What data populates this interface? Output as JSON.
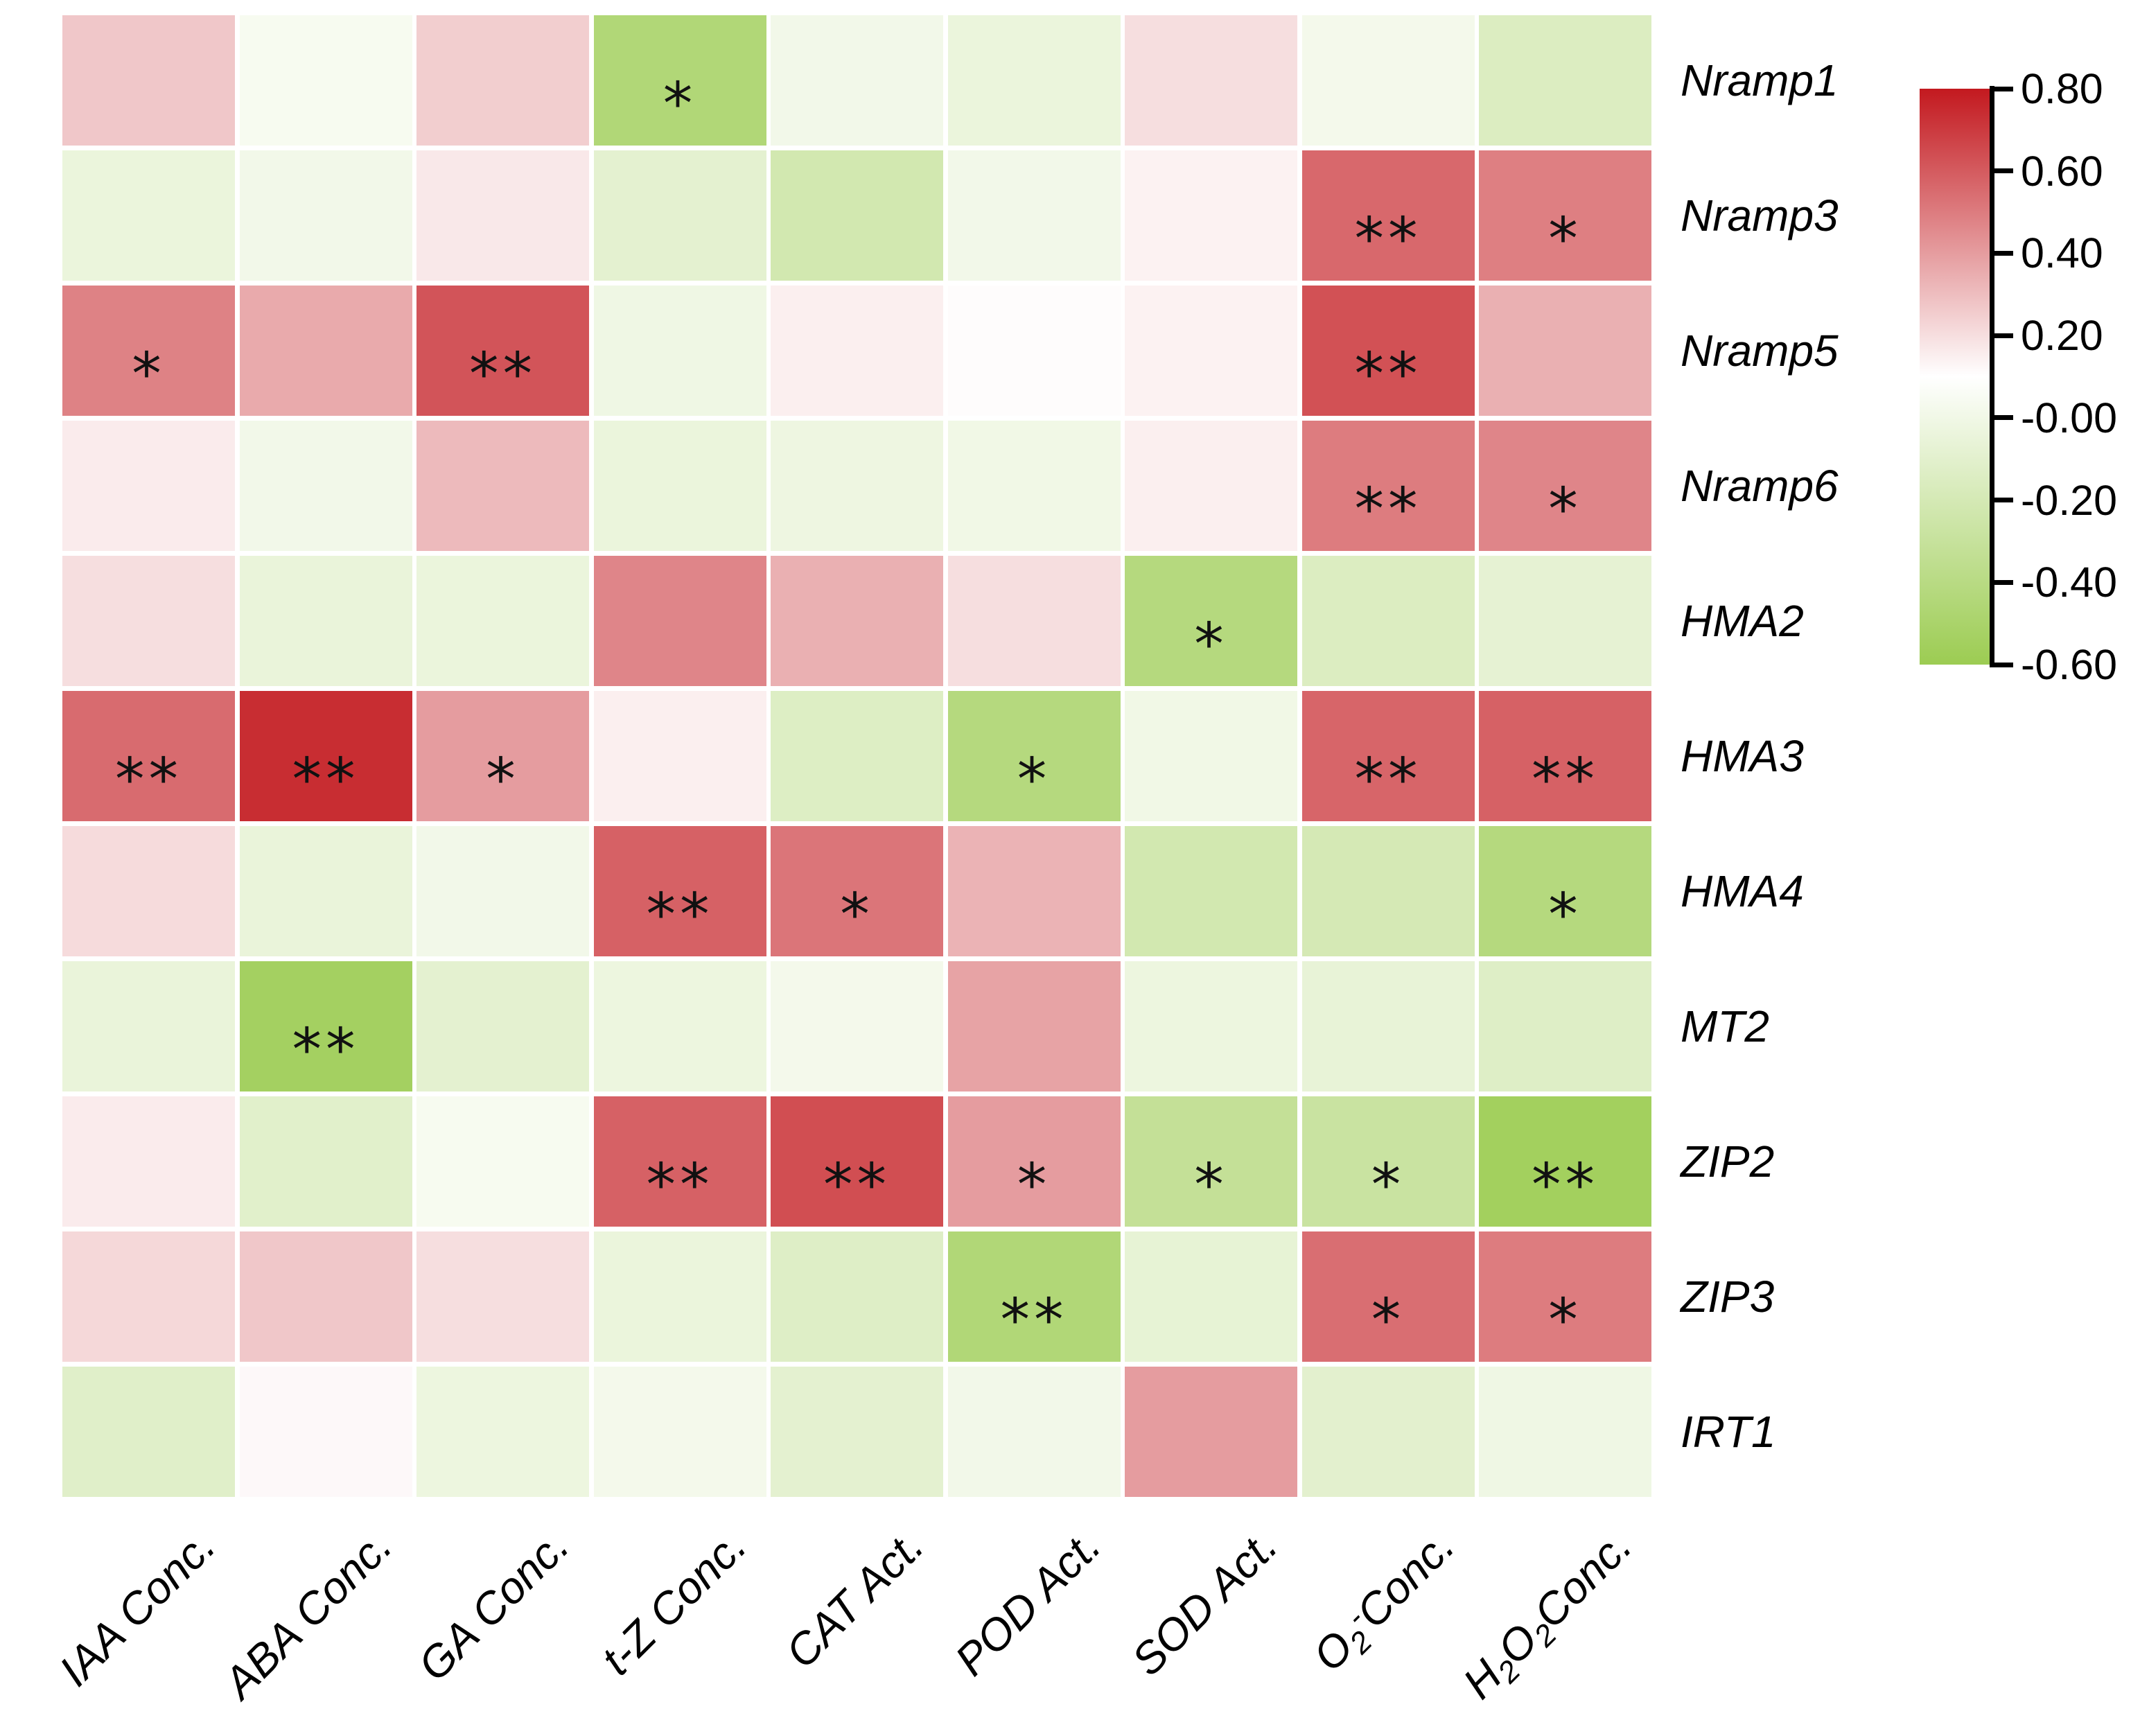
{
  "figure": {
    "background": "#ffffff",
    "description": "Correlation heatmap between metal-transporter gene expression and hormone/antioxidant measurements"
  },
  "chart_data": {
    "type": "heatmap",
    "title": "",
    "xlabel": "",
    "ylabel": "",
    "grid": false,
    "legend_position": "right",
    "x_categories_plain": [
      "IAA Conc.",
      "ABA Conc.",
      "GA Conc.",
      "t-Z Conc.",
      "CAT Act.",
      "POD Act.",
      "SOD Act.",
      "O2- Conc.",
      "H2O2 Conc."
    ],
    "x_categories": [
      [
        {
          "t": "IAA Conc."
        }
      ],
      [
        {
          "t": "ABA Conc."
        }
      ],
      [
        {
          "t": "GA Conc."
        }
      ],
      [
        {
          "t": "t-Z Conc."
        }
      ],
      [
        {
          "t": "CAT Act."
        }
      ],
      [
        {
          "t": "POD Act."
        }
      ],
      [
        {
          "t": "SOD Act."
        }
      ],
      [
        {
          "t": "O"
        },
        {
          "t": "2",
          "s": "sub"
        },
        {
          "t": "-",
          "s": "sup"
        },
        {
          "t": "Conc."
        }
      ],
      [
        {
          "t": "H"
        },
        {
          "t": "2",
          "s": "sub"
        },
        {
          "t": "O"
        },
        {
          "t": "2",
          "s": "sub"
        },
        {
          "t": "Conc."
        }
      ]
    ],
    "y_categories": [
      "Nramp1",
      "Nramp3",
      "Nramp5",
      "Nramp6",
      "HMA2",
      "HMA3",
      "HMA4",
      "MT2",
      "ZIP2",
      "ZIP3",
      "IRT1"
    ],
    "values": [
      [
        0.27,
        0.04,
        0.25,
        -0.45,
        0.01,
        -0.04,
        0.2,
        0.02,
        -0.15
      ],
      [
        -0.04,
        0.01,
        0.17,
        -0.09,
        -0.22,
        0.01,
        0.14,
        0.56,
        0.49
      ],
      [
        0.48,
        0.36,
        0.62,
        -0.01,
        0.15,
        0.11,
        0.14,
        0.63,
        0.34
      ],
      [
        0.16,
        0.01,
        0.31,
        -0.04,
        -0.02,
        0.0,
        0.15,
        0.5,
        0.47
      ],
      [
        0.2,
        -0.05,
        -0.04,
        0.47,
        0.34,
        0.2,
        -0.42,
        -0.15,
        -0.08
      ],
      [
        0.55,
        0.74,
        0.4,
        0.15,
        -0.14,
        -0.42,
        0.0,
        0.57,
        0.58
      ],
      [
        0.21,
        -0.05,
        0.01,
        0.58,
        0.52,
        0.33,
        -0.22,
        -0.2,
        -0.42
      ],
      [
        -0.05,
        -0.54,
        -0.09,
        -0.03,
        0.02,
        0.38,
        -0.03,
        -0.06,
        -0.13
      ],
      [
        0.16,
        -0.11,
        0.04,
        0.58,
        0.64,
        0.4,
        -0.32,
        -0.28,
        -0.55
      ],
      [
        0.22,
        0.27,
        0.2,
        -0.04,
        -0.13,
        -0.45,
        -0.07,
        0.54,
        0.5
      ],
      [
        -0.12,
        0.12,
        -0.03,
        0.02,
        -0.09,
        0.01,
        0.4,
        -0.1,
        -0.01
      ]
    ],
    "significance": [
      [
        "",
        "",
        "",
        "*",
        "",
        "",
        "",
        "",
        ""
      ],
      [
        "",
        "",
        "",
        "",
        "",
        "",
        "",
        "**",
        "*"
      ],
      [
        "*",
        "",
        "**",
        "",
        "",
        "",
        "",
        "**",
        ""
      ],
      [
        "",
        "",
        "",
        "",
        "",
        "",
        "",
        "**",
        "*"
      ],
      [
        "",
        "",
        "",
        "",
        "",
        "",
        "*",
        "",
        ""
      ],
      [
        "**",
        "**",
        "*",
        "",
        "",
        "*",
        "",
        "**",
        "**"
      ],
      [
        "",
        "",
        "",
        "**",
        "*",
        "",
        "",
        "",
        "*"
      ],
      [
        "",
        "**",
        "",
        "",
        "",
        "",
        "",
        "",
        ""
      ],
      [
        "",
        "",
        "",
        "**",
        "**",
        "*",
        "*",
        "*",
        "**"
      ],
      [
        "",
        "",
        "",
        "",
        "",
        "**",
        "",
        "*",
        "*"
      ],
      [
        "",
        "",
        "",
        "",
        "",
        "",
        "",
        "",
        ""
      ]
    ],
    "colormap": {
      "max": 0.8,
      "white_at": 0.1,
      "min": -0.6,
      "red_hex": "#c3191f",
      "white_hex": "#ffffff",
      "green_hex": "#9ccc52"
    },
    "colorbar_tick_labels": [
      "0.80",
      "0.60",
      "0.40",
      "0.20",
      "-0.00",
      "-0.20",
      "-0.40",
      "-0.60"
    ],
    "significance_legend": {
      "single": "*",
      "double": "**"
    }
  }
}
